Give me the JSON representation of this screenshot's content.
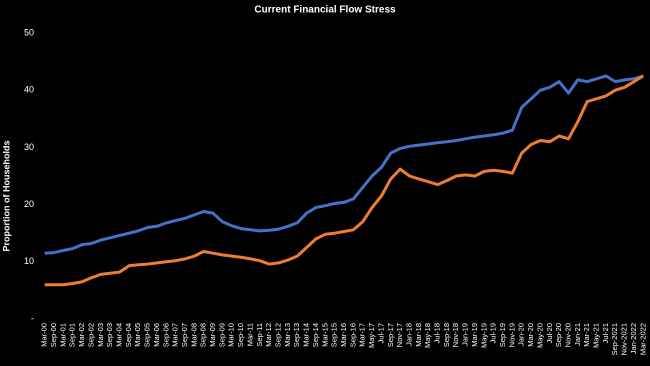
{
  "chart_data": {
    "type": "line",
    "title": "Current Financial Flow Stress",
    "y_label": "Proportion of Households",
    "categories": [
      "Mar-00",
      "Sep-00",
      "Mar-01",
      "Sep-01",
      "Mar-02",
      "Sep-02",
      "Mar-03",
      "Sep-03",
      "Mar-04",
      "Sep-04",
      "Mar-05",
      "Sep-05",
      "Mar-06",
      "Sep-06",
      "Mar-07",
      "Sep-07",
      "Mar-08",
      "Sep-08",
      "Mar-09",
      "Sep-09",
      "Mar-10",
      "Sep-10",
      "Mar-11",
      "Sep-11",
      "Mar-12",
      "Sep-12",
      "Mar-13",
      "Sep-13",
      "Mar-14",
      "Sep-14",
      "Mar-15",
      "Sep-15",
      "Mar-16",
      "Sep-16",
      "Mar-17",
      "May-17",
      "Jul-17",
      "Sep-17",
      "Nov-17",
      "Jan-18",
      "Mar-18",
      "May-18",
      "Jul-18",
      "Sep-18",
      "Nov-18",
      "Jan-19",
      "Mar-19",
      "May-19",
      "Jul-19",
      "Sep-19",
      "Nov-19",
      "Jan-20",
      "Mar-20",
      "May-20",
      "Jul-20",
      "Sep-20",
      "Nov-20",
      "Jan-21",
      "Mar-21",
      "May-21",
      "Jul-21",
      "Sep-2021",
      "Nov-2021",
      "Jan-2022",
      "Mar-2022"
    ],
    "series": [
      {
        "color": "#4472c4",
        "values": [
          11.5,
          11.6,
          12,
          12.3,
          13,
          13.2,
          13.8,
          14.2,
          14.6,
          15,
          15.4,
          16,
          16.2,
          16.8,
          17.2,
          17.6,
          18.2,
          18.8,
          18.5,
          17,
          16.3,
          15.8,
          15.6,
          15.4,
          15.5,
          15.7,
          16.2,
          16.8,
          18.5,
          19.5,
          19.8,
          20.2,
          20.4,
          21,
          23,
          25,
          26.5,
          29,
          29.8,
          30.2,
          30.4,
          30.6,
          30.8,
          31,
          31.2,
          31.5,
          31.8,
          32,
          32.2,
          32.5,
          33,
          37,
          38.5,
          40,
          40.5,
          41.5,
          39.5,
          41.8,
          41.5,
          42,
          42.5,
          41.5,
          41.8,
          42,
          42.5
        ]
      },
      {
        "color": "#ed7d31",
        "values": [
          6,
          6,
          6,
          6.2,
          6.5,
          7.2,
          7.8,
          8,
          8.2,
          9.3,
          9.5,
          9.6,
          9.8,
          10,
          10.2,
          10.5,
          11,
          11.8,
          11.5,
          11.2,
          11,
          10.8,
          10.5,
          10.2,
          9.6,
          9.8,
          10.3,
          11,
          12.5,
          14,
          14.8,
          15,
          15.3,
          15.6,
          17,
          19.5,
          21.5,
          24.5,
          26.2,
          25,
          24.5,
          24,
          23.5,
          24.2,
          25,
          25.2,
          25,
          25.8,
          26,
          25.8,
          25.5,
          29,
          30.5,
          31.2,
          31,
          32,
          31.5,
          34.5,
          38,
          38.5,
          39,
          40,
          40.5,
          41.5,
          42.5
        ]
      }
    ],
    "ylim": [
      0,
      50
    ],
    "yticks": [
      {
        "value": 0,
        "label": "-"
      },
      10,
      20,
      30,
      40,
      50
    ],
    "grid": false
  }
}
